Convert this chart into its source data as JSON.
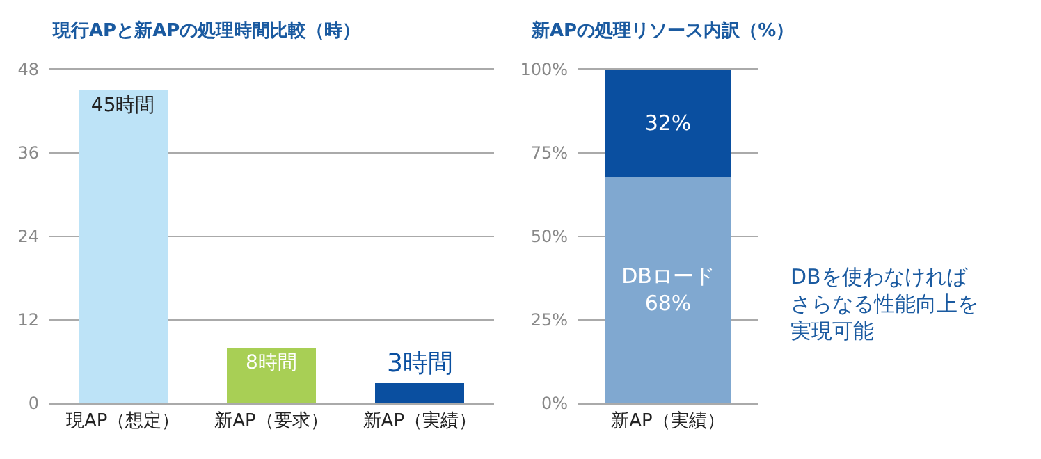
{
  "chart_data": [
    {
      "type": "bar",
      "title": "現行APと新APの処理時間比較（時）",
      "categories": [
        "現AP（想定）",
        "新AP（要求）",
        "新AP（実績）"
      ],
      "values": [
        45,
        8,
        3
      ],
      "colors": [
        "#bde3f7",
        "#a8cf55",
        "#0a4fa0"
      ],
      "value_labels": [
        "45時間",
        "8時間",
        "3時間"
      ],
      "ylim": [
        0,
        48
      ],
      "yticks": [
        0,
        12,
        24,
        36,
        48
      ],
      "grid": "y"
    },
    {
      "type": "bar",
      "title": "新APの処理リソース内訳（%）",
      "stacked": true,
      "categories": [
        "新AP（実績）"
      ],
      "series": [
        {
          "name": "DBロード",
          "color": "#80a8d0",
          "values": [
            68
          ],
          "value_labels": [
            "68%"
          ]
        },
        {
          "color": "#0a4fa0",
          "values": [
            32
          ],
          "value_labels": [
            "32%"
          ]
        }
      ],
      "ylim": [
        0,
        100
      ],
      "yticks": [
        {
          "value": 0,
          "label": "0%"
        },
        {
          "value": 25,
          "label": "25%"
        },
        {
          "value": 50,
          "label": "50%"
        },
        {
          "value": 75,
          "label": "75%"
        },
        {
          "value": 100,
          "label": "100%"
        }
      ],
      "grid": "y",
      "annotations": [
        "DBを使わなければさらなる性能向上を実現可能"
      ]
    }
  ]
}
